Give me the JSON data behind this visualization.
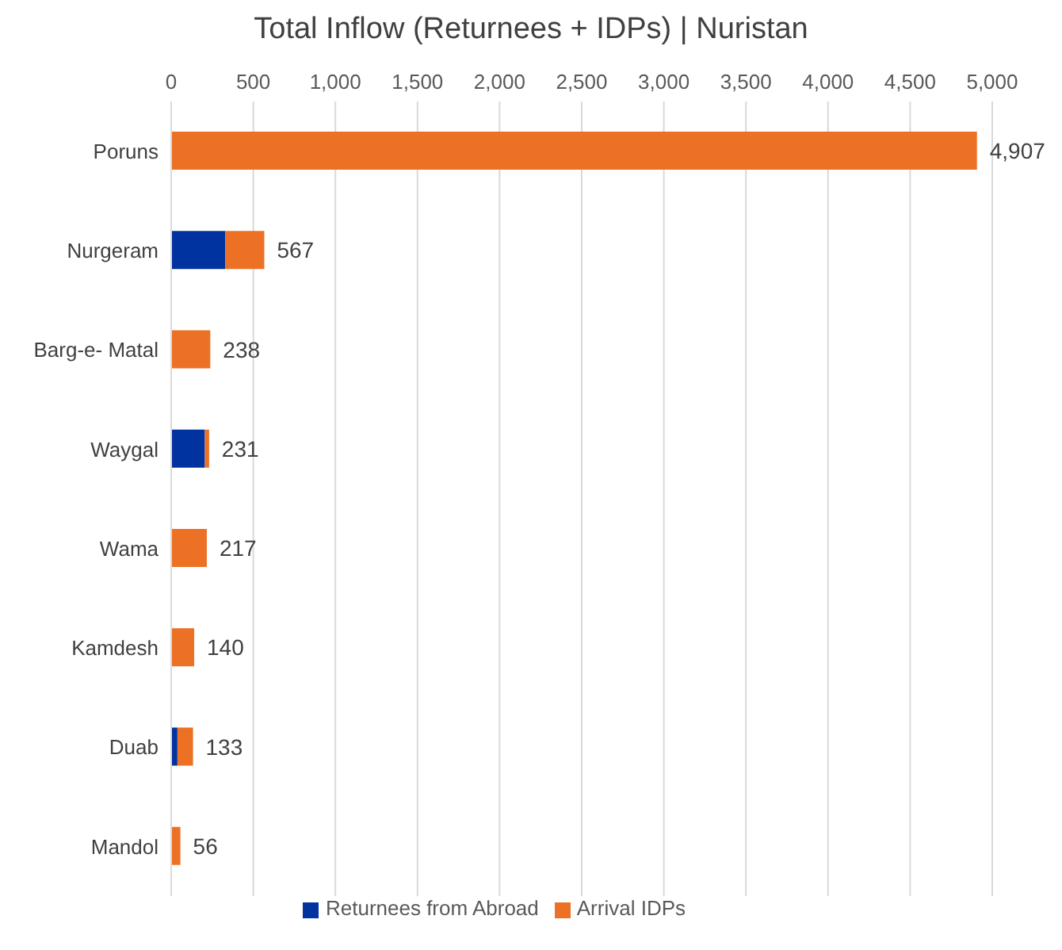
{
  "chart_data": {
    "type": "bar",
    "orientation": "horizontal",
    "stacked": true,
    "title": "Total Inflow (Returnees + IDPs) | Nuristan",
    "categories": [
      "Poruns",
      "Nurgeram",
      "Barg-e- Matal",
      "Waygal",
      "Wama",
      "Kamdesh",
      "Duab",
      "Mandol"
    ],
    "series": [
      {
        "name": "Returnees from Abroad",
        "color": "#0033a0",
        "values": [
          0,
          330,
          0,
          205,
          0,
          0,
          38,
          0
        ]
      },
      {
        "name": "Arrival IDPs",
        "color": "#ed7125",
        "values": [
          4907,
          237,
          238,
          26,
          217,
          140,
          95,
          56
        ]
      }
    ],
    "totals": [
      "4,907",
      "567",
      "238",
      "231",
      "217",
      "140",
      "133",
      "56"
    ],
    "xlim": [
      0,
      5000
    ],
    "xticks": [
      {
        "value": 0,
        "label": "0"
      },
      {
        "value": 500,
        "label": "500"
      },
      {
        "value": 1000,
        "label": "1,000"
      },
      {
        "value": 1500,
        "label": "1,500"
      },
      {
        "value": 2000,
        "label": "2,000"
      },
      {
        "value": 2500,
        "label": "2,500"
      },
      {
        "value": 3000,
        "label": "3,000"
      },
      {
        "value": 3500,
        "label": "3,500"
      },
      {
        "value": 4000,
        "label": "4,000"
      },
      {
        "value": 4500,
        "label": "4,500"
      },
      {
        "value": 5000,
        "label": "5,000"
      }
    ],
    "grid": "x",
    "legend": "bottom"
  }
}
